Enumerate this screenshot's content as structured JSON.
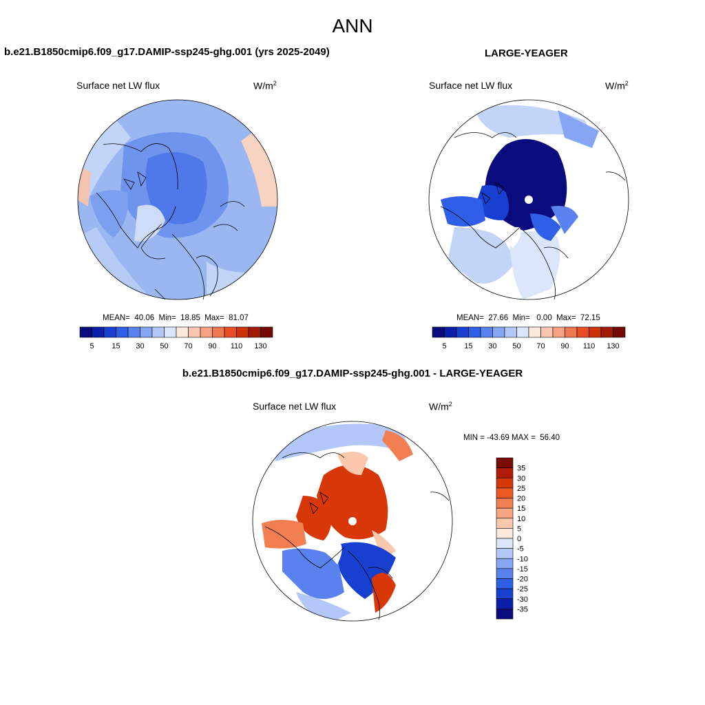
{
  "main_title": "ANN",
  "panels": {
    "model": {
      "header": "b.e21.B1850cmip6.f09_g17.DAMIP-ssp245-ghg.001 (yrs 2025-2049)",
      "variable": "Surface net LW flux",
      "units": "W/m",
      "units_sup": "2",
      "stats": "MEAN=  40.06  Min=  18.85  Max=  81.07"
    },
    "obs": {
      "header": "LARGE-YEAGER",
      "variable": "Surface net LW flux",
      "units": "W/m",
      "units_sup": "2",
      "stats": "MEAN=  27.66  Min=   0.00  Max=  72.15"
    },
    "diff": {
      "header": "b.e21.B1850cmip6.f09_g17.DAMIP-ssp245-ghg.001 - LARGE-YEAGER",
      "variable": "Surface net LW flux",
      "units": "W/m",
      "units_sup": "2",
      "stats": "MIN = -43.69 MAX =  56.40"
    }
  },
  "colorbars": {
    "field": {
      "colors": [
        "#0a0c7e",
        "#0a1ea8",
        "#1840d0",
        "#2f5fe6",
        "#5a82ef",
        "#86a6f4",
        "#b3c8f8",
        "#dbe6fb",
        "#fde8de",
        "#fbc7b0",
        "#f6a282",
        "#f0784f",
        "#e84e22",
        "#cc3208",
        "#a01806",
        "#730a06"
      ],
      "labels": [
        "5",
        "15",
        "30",
        "50",
        "70",
        "90",
        "110",
        "130"
      ]
    },
    "diff": {
      "colors": [
        "#7a0a06",
        "#b01a06",
        "#d83808",
        "#ec5a22",
        "#f27f52",
        "#f6a482",
        "#fbc8ae",
        "#fde8de",
        "#dbe6fb",
        "#b3c8f8",
        "#86a6f4",
        "#5a82ef",
        "#2f5fe6",
        "#1840d0",
        "#0a1ea8",
        "#0a0c7e"
      ],
      "labels": [
        "35",
        "30",
        "25",
        "20",
        "15",
        "10",
        "5",
        "0",
        "-5",
        "-10",
        "-15",
        "-20",
        "-25",
        "-30",
        "-35"
      ]
    }
  }
}
